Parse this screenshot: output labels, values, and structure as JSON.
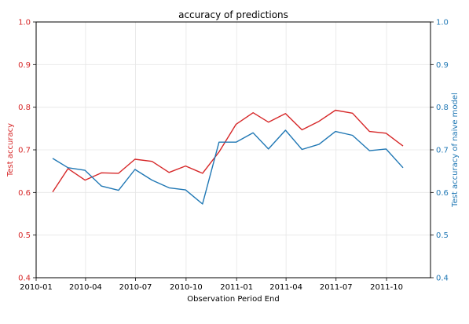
{
  "chart_data": {
    "type": "line",
    "title": "accuracy of predictions",
    "xlabel": "Observation Period End",
    "ylabel_left": "Test accuracy",
    "ylabel_right": "Test accuracy of naive model",
    "ylim_left": [
      0.4,
      1.0
    ],
    "ylim_right": [
      0.4,
      1.0
    ],
    "yticks": [
      "0.4",
      "0.5",
      "0.6",
      "0.7",
      "0.8",
      "0.9",
      "1.0"
    ],
    "xlim": [
      "2010-01-01",
      "2011-12-20"
    ],
    "xticks": [
      {
        "date": "2010-01-01",
        "label": "2010-01"
      },
      {
        "date": "2010-04-01",
        "label": "2010-04"
      },
      {
        "date": "2010-07-01",
        "label": "2010-07"
      },
      {
        "date": "2010-10-01",
        "label": "2010-10"
      },
      {
        "date": "2011-01-01",
        "label": "2011-01"
      },
      {
        "date": "2011-04-01",
        "label": "2011-04"
      },
      {
        "date": "2011-07-01",
        "label": "2011-07"
      },
      {
        "date": "2011-10-01",
        "label": "2011-10"
      }
    ],
    "grid": true,
    "x": [
      "2010-01-31",
      "2010-02-28",
      "2010-03-31",
      "2010-04-30",
      "2010-05-31",
      "2010-06-30",
      "2010-07-31",
      "2010-08-31",
      "2010-09-30",
      "2010-10-31",
      "2010-11-30",
      "2010-12-31",
      "2011-01-31",
      "2011-02-28",
      "2011-03-31",
      "2011-04-30",
      "2011-05-31",
      "2011-06-30",
      "2011-07-31",
      "2011-08-31",
      "2011-09-30",
      "2011-10-31",
      "2011-11-30"
    ],
    "series": [
      {
        "axis": "left",
        "color": "#d62728",
        "values": [
          0.601,
          0.656,
          0.629,
          0.646,
          0.645,
          0.678,
          0.673,
          0.647,
          0.662,
          0.645,
          0.695,
          0.76,
          0.787,
          0.765,
          0.785,
          0.747,
          0.767,
          0.793,
          0.786,
          0.743,
          0.739,
          0.709,
          null
        ]
      },
      {
        "axis": "right",
        "color": "#1f77b4",
        "values": [
          0.68,
          0.658,
          0.652,
          0.615,
          0.605,
          0.654,
          0.629,
          0.611,
          0.606,
          0.573,
          0.718,
          0.718,
          0.74,
          0.702,
          0.746,
          0.701,
          0.713,
          0.743,
          0.734,
          0.698,
          0.702,
          0.658,
          null
        ]
      }
    ]
  }
}
